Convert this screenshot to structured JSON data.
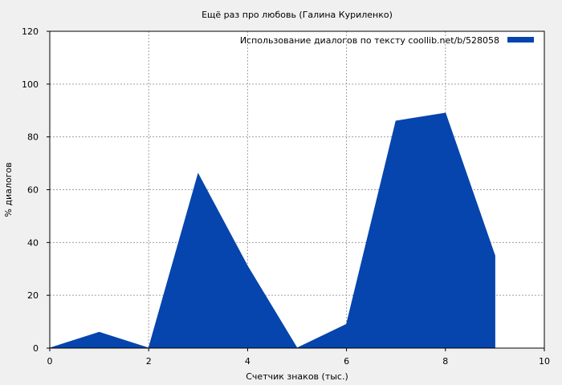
{
  "chart_data": {
    "type": "area",
    "title": "Ещё раз про любовь (Галина Куриленко)",
    "xlabel": "Счетчик знаков (тыс.)",
    "ylabel": "% диалогов",
    "xlim": [
      0,
      10
    ],
    "ylim": [
      0,
      120
    ],
    "xticks": [
      0,
      2,
      4,
      6,
      8,
      10
    ],
    "yticks": [
      0,
      20,
      40,
      60,
      80,
      100,
      120
    ],
    "grid": true,
    "legend_position": "top-right",
    "series": [
      {
        "name": "Использование диалогов по тексту  coollib.net/b/528058",
        "color": "#0645ad",
        "x": [
          0,
          1,
          2,
          3,
          4,
          5,
          6,
          7,
          8,
          9
        ],
        "y": [
          0,
          6,
          0,
          66,
          31,
          0,
          9,
          86,
          89,
          35
        ]
      }
    ]
  }
}
